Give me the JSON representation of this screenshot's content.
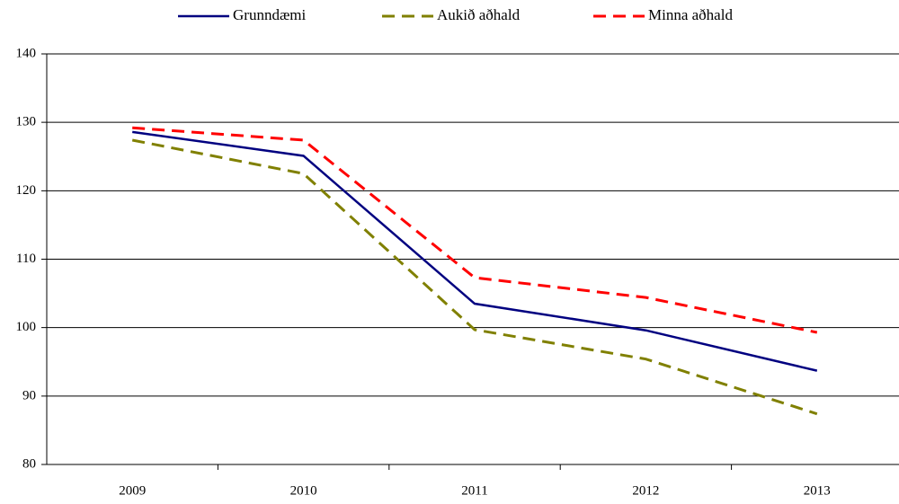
{
  "chart_data": {
    "type": "line",
    "categories": [
      "2009",
      "2010",
      "2011",
      "2012",
      "2013"
    ],
    "series": [
      {
        "name": "Grunndæmi",
        "color": "#000080",
        "style": "solid",
        "values": [
          128.6,
          125.1,
          103.5,
          99.6,
          93.7
        ]
      },
      {
        "name": "Aukið aðhald",
        "color": "#808000",
        "style": "dashed",
        "values": [
          127.4,
          122.5,
          99.7,
          95.4,
          87.4
        ]
      },
      {
        "name": "Minna aðhald",
        "color": "#ff0000",
        "style": "dashed",
        "values": [
          129.2,
          127.4,
          107.3,
          104.4,
          99.3
        ]
      }
    ],
    "ylim": [
      80,
      140
    ],
    "yticks": [
      80,
      90,
      100,
      110,
      120,
      130,
      140
    ],
    "grid": true,
    "legend": "top"
  }
}
